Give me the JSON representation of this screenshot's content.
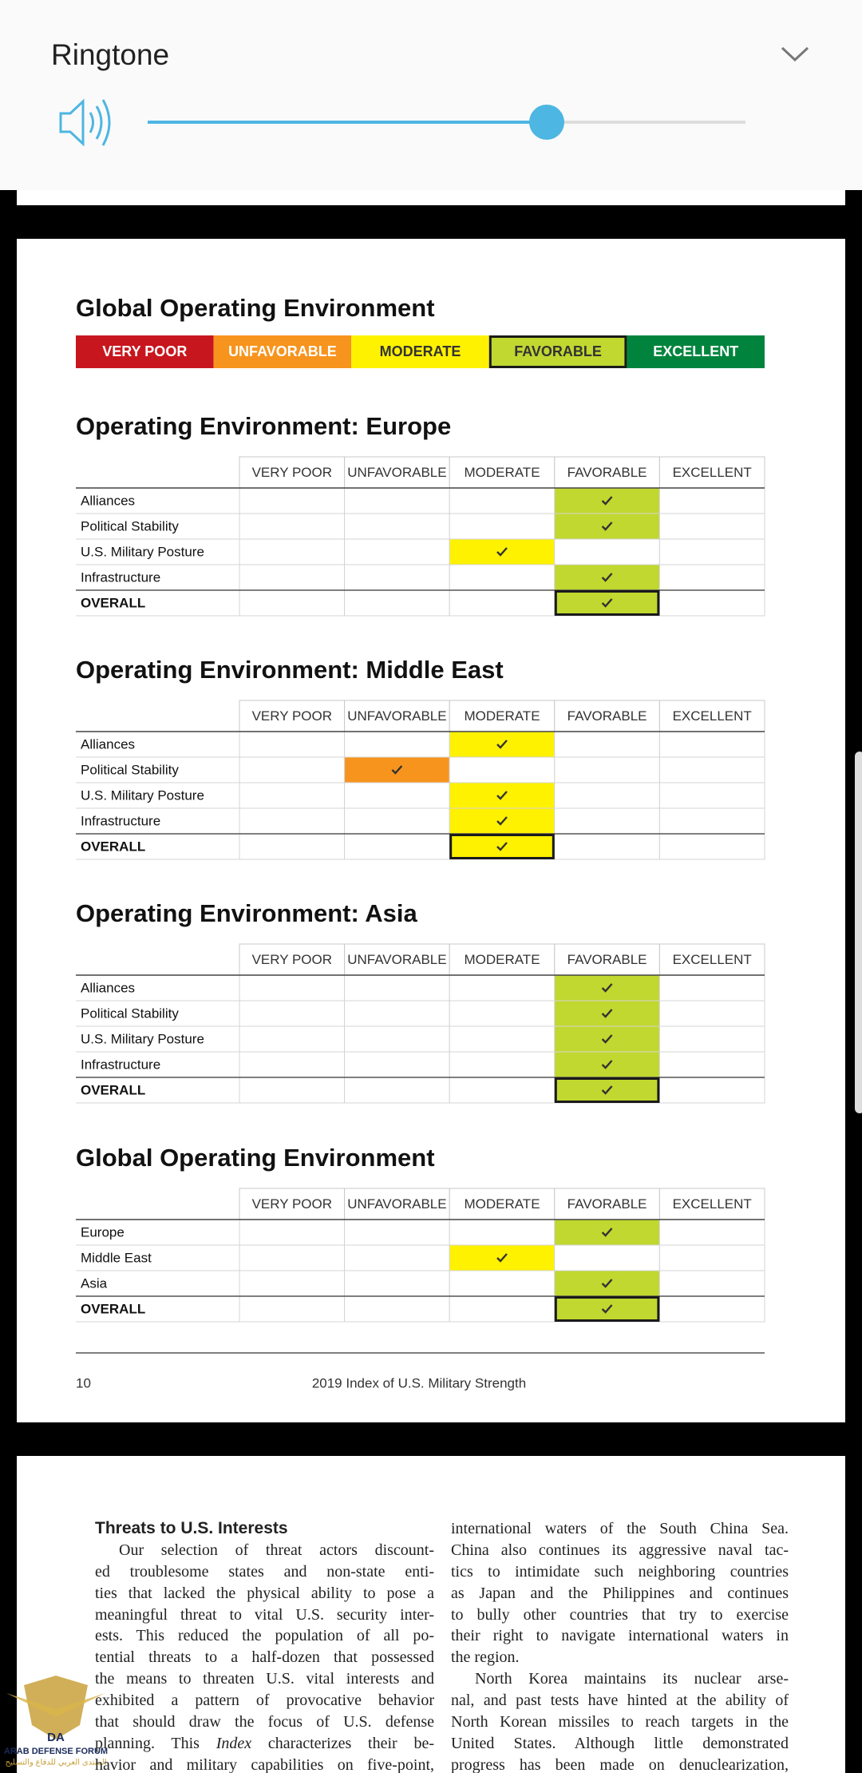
{
  "ringtone": {
    "title": "Ringtone"
  },
  "page1": {
    "legend": {
      "title": "Global Operating Environment",
      "highlight": "FAVORABLE",
      "items": [
        {
          "label": "VERY POOR",
          "color": "#c8161e",
          "text_color": "#ffffff"
        },
        {
          "label": "UNFAVORABLE",
          "color": "#f7941d",
          "text_color": "#ffffff"
        },
        {
          "label": "MODERATE",
          "color": "#fff200",
          "text_color": "#333333"
        },
        {
          "label": "FAVORABLE",
          "color": "#c0d82f",
          "text_color": "#333333"
        },
        {
          "label": "EXCELLENT",
          "color": "#00843d",
          "text_color": "#ffffff"
        }
      ]
    },
    "tables": [
      {
        "title": "Operating Environment: Europe",
        "columns": [
          "VERY POOR",
          "UNFAVORABLE",
          "MODERATE",
          "FAVORABLE",
          "EXCELLENT"
        ],
        "rows": [
          {
            "label": "Alliances",
            "rating": "FAVORABLE"
          },
          {
            "label": "Political Stability",
            "rating": "FAVORABLE"
          },
          {
            "label": "U.S. Military Posture",
            "rating": "MODERATE"
          },
          {
            "label": "Infrastructure",
            "rating": "FAVORABLE"
          }
        ],
        "overall": {
          "label": "OVERALL",
          "rating": "FAVORABLE"
        }
      },
      {
        "title": "Operating Environment: Middle East",
        "columns": [
          "VERY POOR",
          "UNFAVORABLE",
          "MODERATE",
          "FAVORABLE",
          "EXCELLENT"
        ],
        "rows": [
          {
            "label": "Alliances",
            "rating": "MODERATE"
          },
          {
            "label": "Political Stability",
            "rating": "UNFAVORABLE"
          },
          {
            "label": "U.S. Military Posture",
            "rating": "MODERATE"
          },
          {
            "label": "Infrastructure",
            "rating": "MODERATE"
          }
        ],
        "overall": {
          "label": "OVERALL",
          "rating": "MODERATE"
        }
      },
      {
        "title": "Operating Environment: Asia",
        "columns": [
          "VERY POOR",
          "UNFAVORABLE",
          "MODERATE",
          "FAVORABLE",
          "EXCELLENT"
        ],
        "rows": [
          {
            "label": "Alliances",
            "rating": "FAVORABLE"
          },
          {
            "label": "Political Stability",
            "rating": "FAVORABLE"
          },
          {
            "label": "U.S. Military Posture",
            "rating": "FAVORABLE"
          },
          {
            "label": "Infrastructure",
            "rating": "FAVORABLE"
          }
        ],
        "overall": {
          "label": "OVERALL",
          "rating": "FAVORABLE"
        }
      },
      {
        "title": "Global Operating Environment",
        "columns": [
          "VERY POOR",
          "UNFAVORABLE",
          "MODERATE",
          "FAVORABLE",
          "EXCELLENT"
        ],
        "rows": [
          {
            "label": "Europe",
            "rating": "FAVORABLE"
          },
          {
            "label": "Middle East",
            "rating": "MODERATE"
          },
          {
            "label": "Asia",
            "rating": "FAVORABLE"
          }
        ],
        "overall": {
          "label": "OVERALL",
          "rating": "FAVORABLE"
        }
      }
    ],
    "footer": {
      "page": "10",
      "text": "2019 Index of U.S. Military Strength"
    }
  },
  "page2": {
    "heading": "Threats to U.S. Interests",
    "columns": [
      {
        "paragraphs": [
          {
            "lines": [
              "Our selection of threat actors discount-",
              "ed troublesome states and non-state enti-",
              "ties that lacked the physical ability to pose a",
              "meaningful threat to vital U.S. security inter-",
              "ests. This reduced the population of all po-",
              "tential threats to a half-dozen that possessed",
              "the means to threaten U.S. vital interests and",
              "exhibited a pattern of provocative behavior",
              "that should draw the focus of U.S. defense",
              [
                "planning. This ",
                "Index",
                " characterizes their be-"
              ],
              "havior and military capabilities on five-point,"
            ]
          }
        ]
      },
      {
        "paragraphs": [
          {
            "lines": [
              "international waters of the South China Sea.",
              "China also continues its aggressive naval tac-",
              "tics to intimidate such neighboring countries",
              "as Japan and the Philippines and continues",
              "to bully other countries that try to exercise",
              "their right to navigate international waters in",
              "the region."
            ]
          },
          {
            "lines": [
              "North Korea maintains its nuclear arse-",
              "nal, and past tests have hinted at the ability of",
              "North Korean missiles to reach targets in the",
              "United States. Although little demonstrated",
              "progress has been made on denuclearization,"
            ]
          }
        ]
      }
    ]
  },
  "watermark": {
    "mark": "DA",
    "name": "ARAB DEFENSE FORUM",
    "arabic": "المنتدى العربي للدفاع والتسليح"
  }
}
